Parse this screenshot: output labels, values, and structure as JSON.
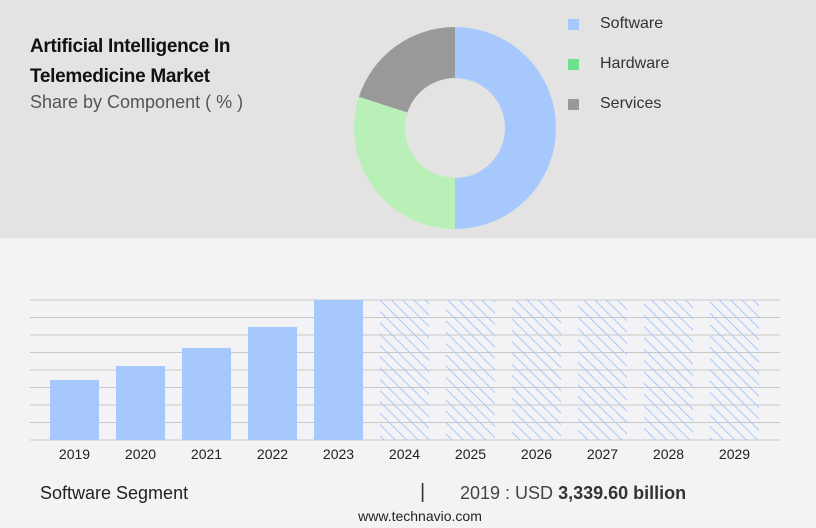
{
  "title_line1": "Artificial Intelligence In",
  "title_line2": "Telemedicine Market",
  "subtitle": "Share by Component ( % )",
  "chart_data": [
    {
      "type": "donut",
      "title": "Share by Component ( % )",
      "legend_placement": "right",
      "slices": [
        {
          "name": "Software",
          "value": 50,
          "color": "#a7c8fd"
        },
        {
          "name": "Hardware",
          "value": 30,
          "color": "#b8f0b8"
        },
        {
          "name": "Services",
          "value": 20,
          "color": "#999999"
        }
      ],
      "legend_colors": [
        "#a7c8fd",
        "#6ee18f",
        "#999999"
      ]
    },
    {
      "type": "bar",
      "categories": [
        "2019",
        "2020",
        "2021",
        "2022",
        "2023",
        "2024",
        "2025",
        "2026",
        "2027",
        "2028",
        "2029"
      ],
      "values": [
        3339.6,
        4119,
        5121,
        6290,
        7793,
        null,
        null,
        null,
        null,
        null,
        null
      ],
      "forecast_from": "2024",
      "bar_color": "#a7c8fd",
      "forecast_style": "hatched",
      "grid": true,
      "ylim": [
        0,
        7793
      ]
    }
  ],
  "footer": {
    "segment": "Software Segment",
    "separator": "|",
    "year_label": "2019 : USD",
    "value": "3,339.60 billion",
    "url": "www.technavio.com"
  }
}
